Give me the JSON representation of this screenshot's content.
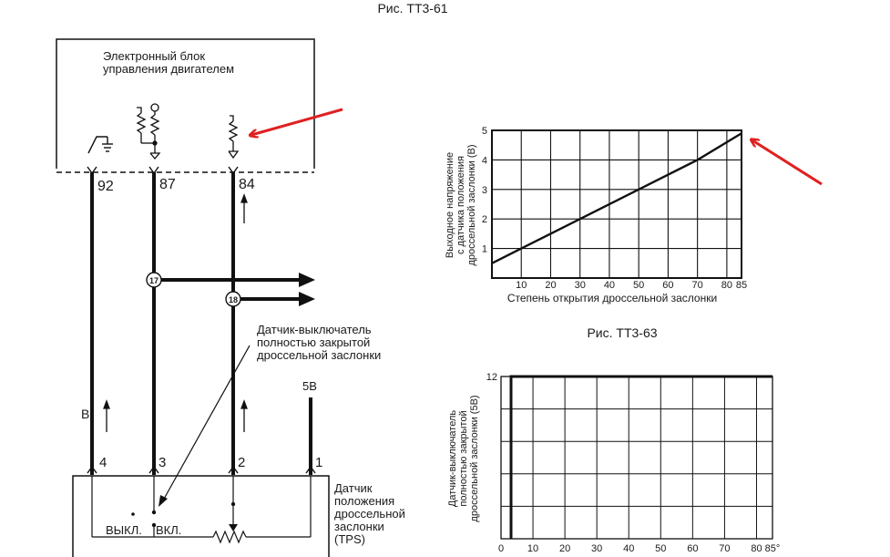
{
  "figure_top": {
    "title": "Рис. ТТ3-61"
  },
  "ecu": {
    "line1": "Электронный блок",
    "line2": "управления двигателем"
  },
  "ecu_pins": [
    "92",
    "87",
    "84"
  ],
  "connectors": [
    "17",
    "18"
  ],
  "label_b": "В",
  "supply_label": "5В",
  "switch_note": [
    "Датчик-выключатель",
    "полностью закрытой",
    "дроссельной заслонки"
  ],
  "sensor_pins": [
    "4",
    "3",
    "2",
    "1"
  ],
  "tps": [
    "Датчик",
    "положения",
    "дроссельной",
    "заслонки",
    "(TPS)"
  ],
  "switch_states": {
    "off": "ВЫКЛ.",
    "on": "ВКЛ."
  },
  "figure_middle": {
    "title": "Рис. ТТ3-63"
  },
  "annotation_color": "#e02020",
  "chart_data": [
    {
      "type": "line",
      "title": "",
      "xlabel": "Степень открытия дроссельной заслонки",
      "ylabel": [
        "Выходное напряжение",
        "с датчика положения",
        "дроссельной заслонки (В)"
      ],
      "x_ticks": [
        "10",
        "20",
        "30",
        "40",
        "50",
        "60",
        "70",
        "80",
        "85"
      ],
      "y_ticks": [
        "1",
        "2",
        "3",
        "4",
        "5"
      ],
      "xlim": [
        0,
        85
      ],
      "ylim": [
        0,
        5
      ],
      "grid": true,
      "series": [
        {
          "x": [
            0,
            10,
            30,
            50,
            70,
            85
          ],
          "y": [
            0.5,
            1.0,
            2.0,
            3.0,
            4.0,
            4.9
          ]
        }
      ]
    },
    {
      "type": "line",
      "title": "",
      "xlabel": "",
      "ylabel": [
        "Датчик-выключатель",
        "полностью закрытой",
        "дроссельной заслонки (5В)"
      ],
      "x_ticks": [
        "0",
        "10",
        "20",
        "30",
        "40",
        "50",
        "60",
        "70",
        "80",
        "85°"
      ],
      "y_ticks": [
        "12"
      ],
      "xlim": [
        0,
        85
      ],
      "ylim": [
        0,
        12
      ],
      "grid": true,
      "series": [
        {
          "x": [
            0,
            0,
            85
          ],
          "y": [
            0,
            12,
            12
          ]
        }
      ]
    }
  ]
}
